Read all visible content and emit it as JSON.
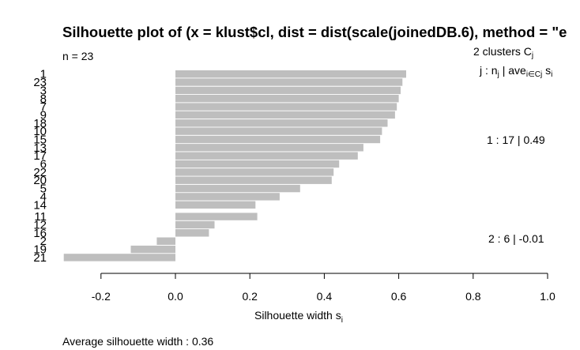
{
  "chart_data": {
    "type": "bar",
    "orientation": "horizontal",
    "title": "Silhouette plot of (x = klust$cl, dist = dist(scale(joinedDB.6), method = \"e",
    "n_label": "n = 23",
    "header": {
      "clusters_line": "2  clusters  C",
      "clusters_sub": "j",
      "legend_j": "j :  n",
      "legend_j_sub": "j",
      "legend_ave": " | ave",
      "legend_ave_sub": "i∈Cj",
      "legend_s": "  s",
      "legend_s_sub": "i"
    },
    "clusters": [
      {
        "summary": "1 :   17  |  0.49",
        "labels": [
          "1",
          "23",
          "3",
          "8",
          "7",
          "9",
          "18",
          "10",
          "15",
          "13",
          "17",
          "6",
          "22",
          "20",
          "5",
          "4",
          "14"
        ],
        "values": [
          0.62,
          0.61,
          0.605,
          0.6,
          0.595,
          0.59,
          0.57,
          0.555,
          0.55,
          0.505,
          0.49,
          0.44,
          0.425,
          0.42,
          0.335,
          0.28,
          0.215
        ]
      },
      {
        "summary": "2 :   6  |  -0.01",
        "labels": [
          "11",
          "12",
          "16",
          "2",
          "19",
          "21"
        ],
        "values": [
          0.22,
          0.105,
          0.09,
          -0.05,
          -0.12,
          -0.3
        ]
      }
    ],
    "xlabel": "Silhouette width s",
    "xlabel_sub": "i",
    "xticks": [
      -0.2,
      0.0,
      0.2,
      0.4,
      0.6,
      0.8,
      1.0
    ],
    "xtick_labels": [
      "-0.2",
      "0.0",
      "0.2",
      "0.4",
      "0.6",
      "0.8",
      "1.0"
    ],
    "xlim": [
      -0.3,
      1.0
    ],
    "footer": "Average silhouette width :  0.36"
  }
}
